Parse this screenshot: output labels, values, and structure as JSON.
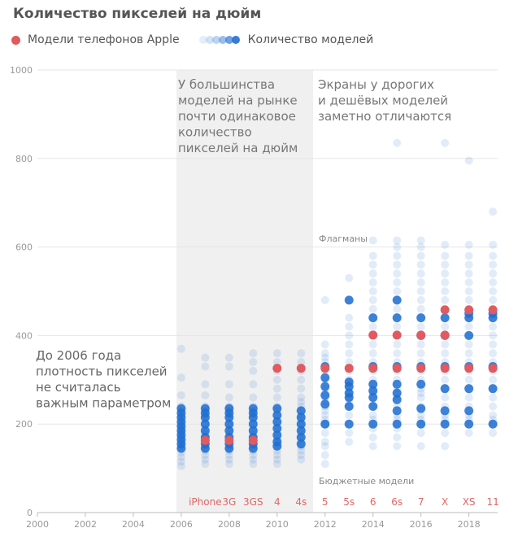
{
  "title": "Количество пикселей на дюйм",
  "legend": {
    "apple_label": "Модели телефонов Apple",
    "count_label": "Количество моделей"
  },
  "colors": {
    "apple": "#e05a5f",
    "density": "#1f6fd1",
    "shade": "#f0f0f0",
    "grid": "#e6e6e6"
  },
  "annotations": {
    "shade": [
      "У большинства",
      "моделей на рынке",
      "почти одинаковое",
      "количество",
      "пикселей на дюйм"
    ],
    "right": [
      "Экраны у дорогих",
      "и дешёвых моделей",
      "заметно отличаются"
    ],
    "left": [
      "До 2006 года",
      "плотность пикселей",
      "не считалась",
      "важным параметром"
    ],
    "flagships": "Флагманы",
    "budget": "Бюджетные модели"
  },
  "chart_data": {
    "type": "scatter",
    "title": "Количество пикселей на дюйм",
    "xlim": [
      2000,
      2019.2
    ],
    "ylim": [
      0,
      1000
    ],
    "x_ticks": [
      2000,
      2002,
      2004,
      2006,
      2008,
      2010,
      2012,
      2014,
      2016,
      2018
    ],
    "y_ticks": [
      0,
      200,
      400,
      600,
      800,
      1000
    ],
    "shaded_range": [
      2005.8,
      2011.5
    ],
    "grid": true,
    "apple_models": [
      {
        "name": "iPhone",
        "year": 2007,
        "ppi": 163
      },
      {
        "name": "3G",
        "year": 2008,
        "ppi": 163
      },
      {
        "name": "3GS",
        "year": 2009,
        "ppi": 163
      },
      {
        "name": "4",
        "year": 2010,
        "ppi": 326
      },
      {
        "name": "4s",
        "year": 2011,
        "ppi": 326
      },
      {
        "name": "5",
        "year": 2012,
        "ppi": 326
      },
      {
        "name": "5s",
        "year": 2013,
        "ppi": 326
      },
      {
        "name": "6",
        "year": 2014,
        "ppi": 326
      },
      {
        "name": "6",
        "year": 2014,
        "ppi": 401
      },
      {
        "name": "6s",
        "year": 2015,
        "ppi": 326
      },
      {
        "name": "6s",
        "year": 2015,
        "ppi": 401
      },
      {
        "name": "7",
        "year": 2016,
        "ppi": 326
      },
      {
        "name": "7",
        "year": 2016,
        "ppi": 401
      },
      {
        "name": "X",
        "year": 2017,
        "ppi": 326
      },
      {
        "name": "X",
        "year": 2017,
        "ppi": 401
      },
      {
        "name": "X",
        "year": 2017,
        "ppi": 458
      },
      {
        "name": "XS",
        "year": 2018,
        "ppi": 326
      },
      {
        "name": "XS",
        "year": 2018,
        "ppi": 458
      },
      {
        "name": "11",
        "year": 2019,
        "ppi": 326
      },
      {
        "name": "11",
        "year": 2019,
        "ppi": 458
      }
    ],
    "model_labels": [
      "iPhone",
      "3G",
      "3GS",
      "4",
      "4s",
      "5",
      "5s",
      "6",
      "6s",
      "7",
      "X",
      "XS",
      "11"
    ],
    "model_years": [
      2007,
      2008,
      2009,
      2010,
      2011,
      2012,
      2013,
      2014,
      2015,
      2016,
      2017,
      2018,
      2019
    ],
    "market_models": [
      {
        "year": 2006,
        "ppi": [
          105,
          115,
          125,
          135,
          145,
          150,
          155,
          160,
          165,
          170,
          175,
          180,
          185,
          190,
          195,
          200,
          210,
          220,
          230,
          240,
          265,
          305,
          370
        ]
      },
      {
        "year": 2007,
        "ppi": [
          110,
          120,
          130,
          140,
          145,
          150,
          155,
          160,
          165,
          170,
          175,
          180,
          190,
          200,
          210,
          220,
          230,
          240,
          265,
          290,
          330,
          350
        ]
      },
      {
        "year": 2008,
        "ppi": [
          110,
          120,
          130,
          140,
          145,
          150,
          155,
          160,
          165,
          170,
          175,
          180,
          190,
          200,
          210,
          220,
          230,
          240,
          260,
          290,
          330,
          350
        ]
      },
      {
        "year": 2009,
        "ppi": [
          110,
          120,
          130,
          140,
          145,
          150,
          155,
          160,
          165,
          170,
          175,
          180,
          190,
          200,
          210,
          220,
          230,
          240,
          260,
          290,
          320,
          340,
          360
        ]
      },
      {
        "year": 2010,
        "ppi": [
          110,
          120,
          130,
          140,
          150,
          160,
          165,
          170,
          180,
          190,
          200,
          210,
          220,
          230,
          240,
          260,
          280,
          300,
          320,
          340,
          360
        ]
      },
      {
        "year": 2011,
        "ppi": [
          120,
          130,
          140,
          150,
          160,
          170,
          180,
          190,
          200,
          210,
          220,
          230,
          240,
          250,
          260,
          280,
          300,
          320,
          340,
          360
        ]
      },
      {
        "year": 2012,
        "ppi": [
          110,
          130,
          150,
          160,
          180,
          200,
          200,
          210,
          220,
          230,
          240,
          250,
          260,
          270,
          280,
          300,
          320,
          340,
          350,
          360,
          380,
          480
        ]
      },
      {
        "year": 2013,
        "ppi": [
          160,
          180,
          200,
          220,
          240,
          250,
          260,
          270,
          280,
          290,
          300,
          320,
          340,
          360,
          380,
          400,
          420,
          440,
          480,
          530
        ]
      },
      {
        "year": 2014,
        "ppi": [
          150,
          170,
          190,
          200,
          210,
          220,
          240,
          260,
          270,
          280,
          290,
          300,
          320,
          330,
          340,
          360,
          380,
          400,
          420,
          440,
          460,
          480,
          500,
          520,
          540,
          560,
          580,
          615
        ]
      },
      {
        "year": 2015,
        "ppi": [
          150,
          170,
          190,
          200,
          210,
          220,
          240,
          260,
          270,
          280,
          300,
          320,
          330,
          340,
          360,
          380,
          400,
          420,
          440,
          460,
          480,
          500,
          520,
          540,
          560,
          580,
          600,
          615,
          835
        ]
      },
      {
        "year": 2016,
        "ppi": [
          150,
          180,
          200,
          210,
          220,
          240,
          260,
          270,
          280,
          300,
          320,
          330,
          340,
          360,
          380,
          400,
          420,
          440,
          460,
          480,
          500,
          520,
          540,
          560,
          580,
          600,
          615
        ]
      },
      {
        "year": 2017,
        "ppi": [
          150,
          180,
          200,
          210,
          220,
          240,
          260,
          280,
          300,
          320,
          330,
          340,
          360,
          380,
          400,
          420,
          440,
          460,
          480,
          500,
          520,
          540,
          560,
          580,
          605,
          835
        ]
      },
      {
        "year": 2018,
        "ppi": [
          180,
          200,
          210,
          220,
          240,
          260,
          280,
          300,
          320,
          330,
          340,
          360,
          380,
          400,
          420,
          440,
          460,
          480,
          500,
          520,
          540,
          560,
          580,
          605,
          795
        ]
      },
      {
        "year": 2019,
        "ppi": [
          180,
          200,
          210,
          220,
          240,
          260,
          280,
          300,
          320,
          330,
          340,
          360,
          380,
          400,
          420,
          440,
          460,
          480,
          500,
          520,
          540,
          560,
          580,
          605,
          680
        ]
      }
    ],
    "highlight_clusters": [
      {
        "year": 2006,
        "ppi": [
          145,
          155,
          165,
          175,
          185,
          195,
          205,
          215,
          225,
          235
        ]
      },
      {
        "year": 2007,
        "ppi": [
          145,
          155,
          170,
          185,
          200,
          215,
          225,
          235
        ]
      },
      {
        "year": 2008,
        "ppi": [
          145,
          155,
          170,
          185,
          200,
          215,
          225,
          235
        ]
      },
      {
        "year": 2009,
        "ppi": [
          145,
          155,
          170,
          185,
          200,
          215,
          225,
          235
        ]
      },
      {
        "year": 2010,
        "ppi": [
          150,
          160,
          175,
          190,
          205,
          220,
          235
        ]
      },
      {
        "year": 2011,
        "ppi": [
          155,
          170,
          185,
          200,
          215,
          230
        ]
      },
      {
        "year": 2012,
        "ppi": [
          200,
          245,
          265,
          285,
          305,
          330
        ]
      },
      {
        "year": 2013,
        "ppi": [
          200,
          240,
          260,
          270,
          285,
          295,
          480
        ]
      },
      {
        "year": 2014,
        "ppi": [
          200,
          240,
          260,
          275,
          290,
          330,
          440
        ]
      },
      {
        "year": 2015,
        "ppi": [
          200,
          230,
          255,
          270,
          290,
          330,
          440,
          480
        ]
      },
      {
        "year": 2016,
        "ppi": [
          200,
          235,
          290,
          330,
          400,
          440
        ]
      },
      {
        "year": 2017,
        "ppi": [
          200,
          230,
          280,
          330,
          400,
          440
        ]
      },
      {
        "year": 2018,
        "ppi": [
          200,
          230,
          280,
          330,
          400,
          440,
          450
        ]
      },
      {
        "year": 2019,
        "ppi": [
          200,
          280,
          330,
          440,
          450
        ]
      }
    ]
  }
}
